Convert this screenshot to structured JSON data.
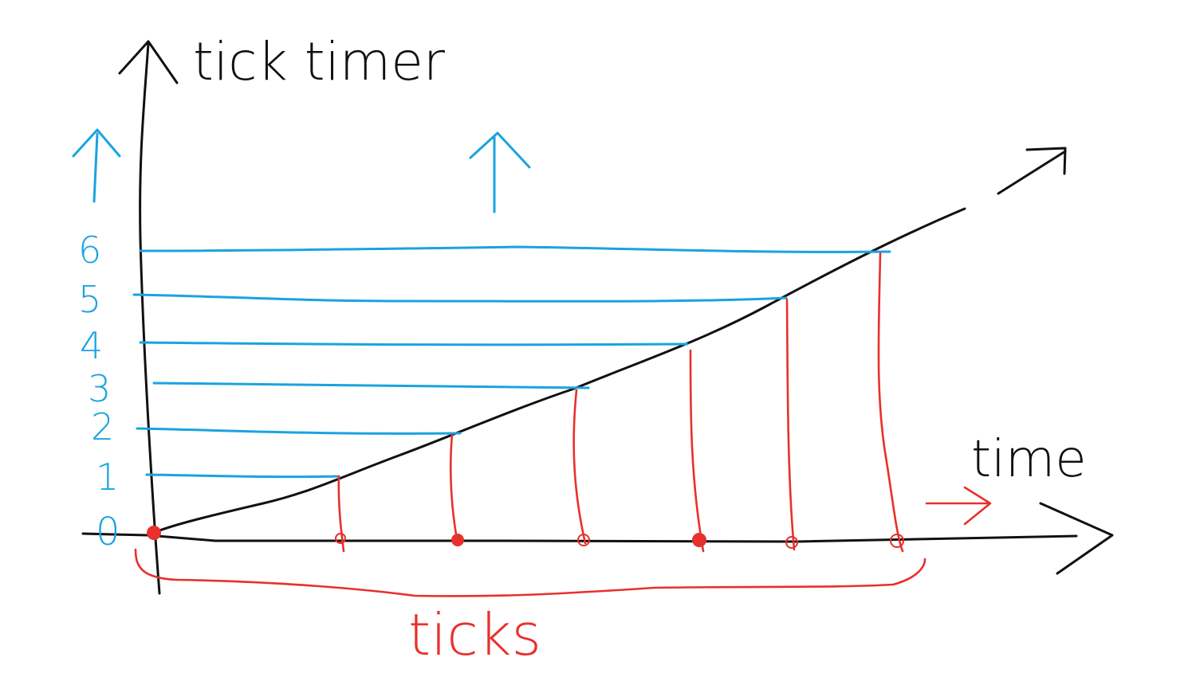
{
  "labels": {
    "y_axis": "tick timer",
    "x_axis": "time",
    "ticks_brace": "ticks"
  },
  "levels": [
    "0",
    "1",
    "2",
    "3",
    "4",
    "5",
    "6"
  ],
  "colors": {
    "axes": "#111111",
    "levels": "#1aa3e0",
    "ticks": "#e8302c",
    "background": "#ffffff"
  }
}
